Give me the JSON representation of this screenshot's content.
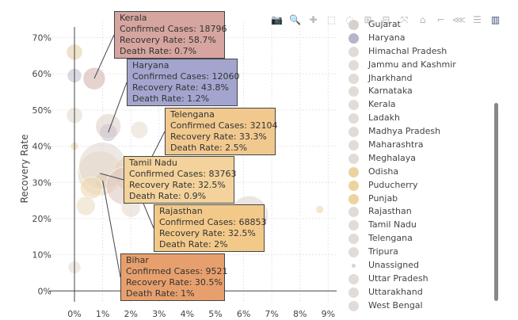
{
  "chart_data": {
    "type": "scatter",
    "title": "",
    "xlabel": "",
    "ylabel": "Recovery Rate",
    "xlim": [
      -0.9,
      9.3
    ],
    "ylim": [
      -3,
      74.5
    ],
    "x_ticks": [
      0,
      1,
      2,
      3,
      4,
      5,
      6,
      7,
      8,
      9
    ],
    "x_tick_labels": [
      "0%",
      "1%",
      "2%",
      "3%",
      "4%",
      "5%",
      "6%",
      "7%",
      "8%",
      "9%"
    ],
    "y_ticks": [
      0,
      10,
      20,
      30,
      40,
      50,
      60,
      70
    ],
    "y_tick_labels": [
      "0%",
      "10%",
      "20%",
      "30%",
      "40%",
      "50%",
      "60%",
      "70%"
    ],
    "grid": true,
    "legend_placement": "right",
    "points": [
      {
        "name": "Kerala",
        "confirmed": 18796,
        "recovery": 58.7,
        "death": 0.7,
        "color": "#d4b5b0",
        "size": 14
      },
      {
        "name": "Haryana",
        "confirmed": 12060,
        "recovery": 43.8,
        "death": 1.2,
        "color": "#b5b0c8",
        "size": 11
      },
      {
        "name": "Telengana",
        "confirmed": 32104,
        "recovery": 33.3,
        "death": 2.5,
        "color": "#e2d6c6",
        "size": 16
      },
      {
        "name": "Tamil Nadu",
        "confirmed": 83763,
        "recovery": 32.5,
        "death": 0.9,
        "color": "#e8d6b8",
        "size": 28
      },
      {
        "name": "Rajasthan",
        "confirmed": 68853,
        "recovery": 32.5,
        "death": 2.0,
        "color": "#e9c98f",
        "size": 22
      },
      {
        "name": "Bihar",
        "confirmed": 9521,
        "recovery": 30.5,
        "death": 1.0,
        "color": "#ddb58a",
        "size": 10
      },
      {
        "name": "",
        "confirmed": null,
        "recovery": 66.0,
        "death": 0.0,
        "color": "#e6cfa8",
        "size": 10
      },
      {
        "name": "",
        "confirmed": null,
        "recovery": 59.5,
        "death": 0.0,
        "color": "#c5bfd4",
        "size": 9
      },
      {
        "name": "",
        "confirmed": null,
        "recovery": 48.5,
        "death": 0.0,
        "color": "#e2d8cf",
        "size": 10
      },
      {
        "name": "",
        "confirmed": null,
        "recovery": 45.5,
        "death": 1.2,
        "color": "#ddd2cc",
        "size": 16
      },
      {
        "name": "",
        "confirmed": null,
        "recovery": 44.5,
        "death": 2.3,
        "color": "#e8ddd2",
        "size": 11
      },
      {
        "name": "",
        "confirmed": null,
        "recovery": 40.0,
        "death": 0.0,
        "color": "#ecd7ae",
        "size": 5
      },
      {
        "name": "",
        "confirmed": null,
        "recovery": 34.5,
        "death": 1.0,
        "color": "#e2d8d2",
        "size": 30
      },
      {
        "name": "",
        "confirmed": null,
        "recovery": 29.0,
        "death": 1.8,
        "color": "#e0c8c0",
        "size": 24
      },
      {
        "name": "",
        "confirmed": null,
        "recovery": 28.5,
        "death": 0.6,
        "color": "#efd9b4",
        "size": 14
      },
      {
        "name": "",
        "confirmed": null,
        "recovery": 23.5,
        "death": 0.4,
        "color": "#ecdcc4",
        "size": 12
      },
      {
        "name": "",
        "confirmed": null,
        "recovery": 23.0,
        "death": 2.0,
        "color": "#e4d8d0",
        "size": 12
      },
      {
        "name": "",
        "confirmed": null,
        "recovery": 21.0,
        "death": 6.2,
        "color": "#e0d6d0",
        "size": 24
      },
      {
        "name": "",
        "confirmed": null,
        "recovery": 22.5,
        "death": 8.7,
        "color": "#ecd7ae",
        "size": 5
      },
      {
        "name": "",
        "confirmed": null,
        "recovery": 6.5,
        "death": 0.0,
        "color": "#e4dcd6",
        "size": 8
      }
    ]
  },
  "tooltips": [
    {
      "name": "Kerala",
      "l1": "Confirmed Cases:  18796",
      "l2": "Recovery Rate:  58.7%",
      "l3": "Death Rate:  0.7%",
      "bg": "#d6a59f"
    },
    {
      "name": "Haryana",
      "l1": "Confirmed Cases:  12060",
      "l2": "Recovery Rate:  43.8%",
      "l3": "Death Rate:  1.2%",
      "bg": "#a3a5cf"
    },
    {
      "name": "Telengana",
      "l1": "Confirmed Cases:  32104",
      "l2": "Recovery Rate:  33.3%",
      "l3": "Death Rate:  2.5%",
      "bg": "#f1c98e"
    },
    {
      "name": "Tamil Nadu",
      "l1": "Confirmed Cases:  83763",
      "l2": "Recovery Rate:  32.5%",
      "l3": "Death Rate:  0.9%",
      "bg": "#f3d39b"
    },
    {
      "name": "Rajasthan",
      "l1": "Confirmed Cases:  68853",
      "l2": "Recovery Rate:  32.5%",
      "l3": "Death Rate:  2%",
      "bg": "#f3c98a"
    },
    {
      "name": "Bihar",
      "l1": "Confirmed Cases:  9521",
      "l2": "Recovery Rate:  30.5%",
      "l3": "Death Rate:  1%",
      "bg": "#e7a06d"
    }
  ],
  "legend": [
    {
      "label": "Gujarat",
      "color": "#d8d0cc"
    },
    {
      "label": "Haryana",
      "color": "#b8b4c8"
    },
    {
      "label": "Himachal Pradesh",
      "color": "#e2dcd8"
    },
    {
      "label": "Jammu and Kashmir",
      "color": "#e2dcd8"
    },
    {
      "label": "Jharkhand",
      "color": "#e2dcd8"
    },
    {
      "label": "Karnataka",
      "color": "#e2dcd8"
    },
    {
      "label": "Kerala",
      "color": "#e2dcd8"
    },
    {
      "label": "Ladakh",
      "color": "#e2dcd8"
    },
    {
      "label": "Madhya Pradesh",
      "color": "#e2dcd8"
    },
    {
      "label": "Maharashtra",
      "color": "#e2dcd8"
    },
    {
      "label": "Meghalaya",
      "color": "#e2dcd8"
    },
    {
      "label": "Odisha",
      "color": "#ecd39f"
    },
    {
      "label": "Puducherry",
      "color": "#ecd39f"
    },
    {
      "label": "Punjab",
      "color": "#ecd39f"
    },
    {
      "label": "Rajasthan",
      "color": "#e2dcd8"
    },
    {
      "label": "Tamil Nadu",
      "color": "#e2dcd8"
    },
    {
      "label": "Telengana",
      "color": "#e2dcd8"
    },
    {
      "label": "Tripura",
      "color": "#e2dcd8"
    },
    {
      "label": "Unassigned",
      "color": "#d6d0e0"
    },
    {
      "label": "Uttar Pradesh",
      "color": "#e2dcd8"
    },
    {
      "label": "Uttarakhand",
      "color": "#e2dcd8"
    },
    {
      "label": "West Bengal",
      "color": "#e2dcd8"
    }
  ],
  "modebar": [
    {
      "name": "camera-icon",
      "glyph": "📷"
    },
    {
      "name": "zoom-icon",
      "glyph": "🔍"
    },
    {
      "name": "pan-icon",
      "glyph": "✚"
    },
    {
      "name": "box-select-icon",
      "glyph": "⬚"
    },
    {
      "name": "lasso-select-icon",
      "glyph": "◌"
    },
    {
      "name": "zoom-in-icon",
      "glyph": "⊞"
    },
    {
      "name": "zoom-out-icon",
      "glyph": "⊟"
    },
    {
      "name": "autoscale-icon",
      "glyph": "⤧"
    },
    {
      "name": "reset-axes-icon",
      "glyph": "⌂"
    },
    {
      "name": "spike-lines-icon",
      "glyph": "⌐"
    },
    {
      "name": "hover-closest-icon",
      "glyph": "⋘"
    },
    {
      "name": "hover-compare-icon",
      "glyph": "☰"
    },
    {
      "name": "plotly-logo-icon",
      "glyph": "▥"
    }
  ]
}
